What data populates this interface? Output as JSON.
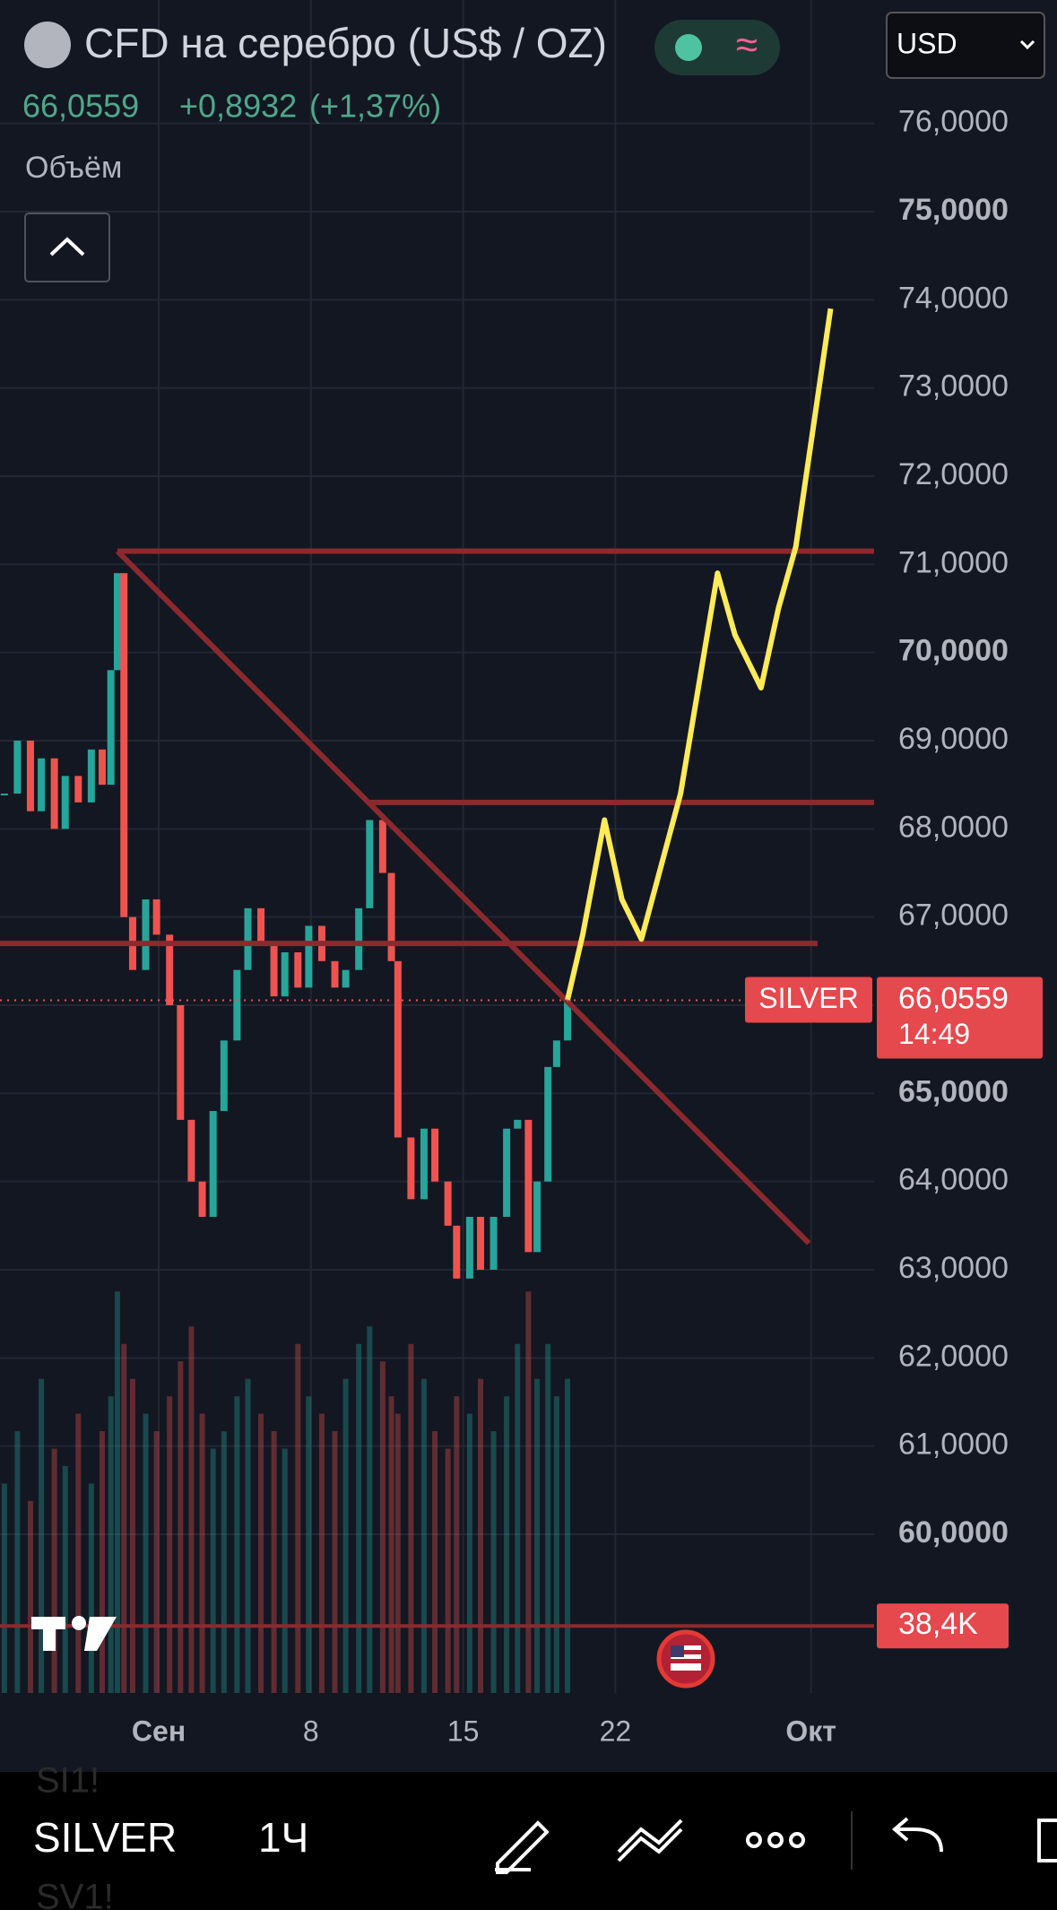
{
  "header": {
    "title": "CFD на серебро (US$ / OZ)",
    "currency": "USD",
    "price": "66,0559",
    "change": "+0,8932",
    "change_pct": "(+1,37%)",
    "volume_label": "Объём"
  },
  "chart": {
    "xlim": [
      -6.3,
      33.9
    ],
    "ylim": [
      58.2,
      77.4
    ],
    "yticks": [
      {
        "value": 60,
        "label": "60,0000"
      },
      {
        "value": 61,
        "label": "61,0000"
      },
      {
        "value": 62,
        "label": "62,0000"
      },
      {
        "value": 63,
        "label": "63,0000"
      },
      {
        "value": 64,
        "label": "64,0000"
      },
      {
        "value": 65,
        "label": "65,0000"
      },
      {
        "value": 66,
        "label": "66,0000"
      },
      {
        "value": 67,
        "label": "67,0000"
      },
      {
        "value": 68,
        "label": "68,0000"
      },
      {
        "value": 69,
        "label": "69,0000"
      },
      {
        "value": 70,
        "label": "70,0000"
      },
      {
        "value": 71,
        "label": "71,0000"
      },
      {
        "value": 72,
        "label": "72,0000"
      },
      {
        "value": 73,
        "label": "73,0000"
      },
      {
        "value": 74,
        "label": "74,0000"
      },
      {
        "value": 75,
        "label": "75,0000"
      },
      {
        "value": 76,
        "label": "76,0000"
      }
    ],
    "major_yticks": [
      60,
      65,
      70,
      75
    ],
    "xticks": [
      {
        "value": 1,
        "label": "Сен"
      },
      8,
      15,
      22,
      {
        "value": 31,
        "label": "Окт"
      }
    ],
    "grid": true,
    "up_color": "#26a69a",
    "down_color": "#ef5350",
    "price": {
      "x": [
        -6.1,
        -5.5,
        -4.9,
        -4.4,
        -3.8,
        -3.3,
        -2.7,
        -2.1,
        -1.6,
        -1.2,
        -0.9,
        -0.6,
        -0.2,
        0.4,
        0.9,
        1.5,
        2.0,
        2.5,
        3.0,
        3.5,
        4.0,
        4.6,
        5.1,
        5.7,
        6.3,
        6.8,
        7.4,
        7.9,
        8.5,
        9.1,
        9.6,
        10.2,
        10.7,
        11.3,
        11.7,
        12.0,
        12.6,
        13.2,
        13.7,
        14.3,
        14.7,
        15.3,
        15.8,
        16.4,
        17.0,
        17.5,
        18.0,
        18.4,
        18.9,
        19.3,
        19.8
      ],
      "values": [
        68.4,
        69.0,
        68.2,
        68.8,
        68.0,
        68.6,
        68.3,
        68.9,
        68.5,
        69.8,
        70.9,
        67.0,
        66.4,
        67.2,
        66.8,
        66.0,
        64.7,
        64.0,
        63.6,
        64.8,
        65.6,
        66.4,
        67.1,
        66.7,
        66.1,
        66.6,
        66.2,
        66.9,
        66.5,
        66.2,
        66.4,
        67.1,
        68.1,
        67.5,
        66.5,
        64.5,
        63.8,
        64.6,
        64.0,
        63.5,
        62.9,
        63.6,
        63.0,
        63.6,
        64.6,
        64.7,
        63.2,
        64.0,
        65.3,
        65.6,
        66.0559
      ]
    },
    "volume": {
      "ylim": [
        0,
        970
      ],
      "values": [
        120,
        150,
        110,
        180,
        140,
        130,
        160,
        120,
        150,
        170,
        230,
        200,
        180,
        160,
        150,
        170,
        190,
        210,
        160,
        140,
        150,
        170,
        180,
        160,
        150,
        140,
        200,
        170,
        160,
        150,
        180,
        200,
        210,
        190,
        170,
        160,
        200,
        180,
        150,
        140,
        170,
        160,
        180,
        150,
        170,
        200,
        230,
        180,
        200,
        170,
        180
      ]
    },
    "last_price": {
      "value": 66.0559,
      "label": "66,0559",
      "symbol": "SILVER",
      "countdown": "14:49"
    },
    "last_volume": {
      "value": 38.4,
      "label": "38,4K"
    },
    "levels": [
      {
        "price": 71.15,
        "from": -0.9,
        "to": 33.9
      },
      {
        "price": 68.3,
        "from": 10.7,
        "to": 33.9
      },
      {
        "price": 66.7,
        "from": -6.3,
        "to": 31.3
      }
    ],
    "trend": {
      "x": [
        -0.9,
        30.9
      ],
      "values": [
        71.15,
        63.3
      ]
    },
    "projection": {
      "color": "#ffeb5a",
      "x": [
        19.8,
        20.5,
        21.5,
        22.3,
        23.2,
        25.0,
        26.7,
        27.5,
        28.7,
        29.5,
        30.3,
        31.9
      ],
      "values": [
        66.06,
        66.8,
        68.1,
        67.2,
        66.75,
        68.4,
        70.9,
        70.2,
        69.6,
        70.5,
        71.2,
        73.9
      ]
    }
  },
  "toolbar": {
    "symbol": "SILVER",
    "interval": "1Ч",
    "ghost": [
      "SI1!",
      "SV1!"
    ]
  }
}
